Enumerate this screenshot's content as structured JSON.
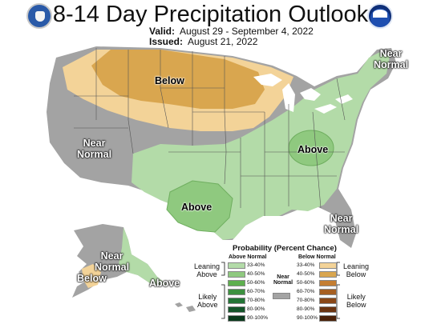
{
  "header": {
    "title": "8-14 Day Precipitation Outlook",
    "valid_label": "Valid:",
    "valid_value": "August 29 - September 4, 2022",
    "issued_label": "Issued:",
    "issued_value": "August 21, 2022"
  },
  "logos": {
    "left": "department-of-commerce-seal",
    "right": "noaa-logo"
  },
  "regions": {
    "north_below": "Below",
    "west_near_normal_1": "Near",
    "west_near_normal_2": "Normal",
    "northeast_near_normal_1": "Near",
    "northeast_near_normal_2": "Normal",
    "ohio_above": "Above",
    "south_above": "Above",
    "southeast_near_normal_1": "Near",
    "southeast_near_normal_2": "Normal",
    "alaska_near_normal_1": "Near",
    "alaska_near_normal_2": "Normal",
    "alaska_below": "Below",
    "alaska_above": "Above"
  },
  "legend": {
    "title": "Probability (Percent Chance)",
    "above_header": "Above Normal",
    "below_header": "Below Normal",
    "near_header_1": "Near",
    "near_header_2": "Normal",
    "leaning_above_1": "Leaning",
    "leaning_above_2": "Above",
    "likely_above_1": "Likely",
    "likely_above_2": "Above",
    "leaning_below_1": "Leaning",
    "leaning_below_2": "Below",
    "likely_below_1": "Likely",
    "likely_below_2": "Below",
    "ranges": [
      "33-40%",
      "40-50%",
      "50-60%",
      "60-70%",
      "70-80%",
      "80-90%",
      "90-100%"
    ],
    "above_colors": [
      "#b3dba8",
      "#8fc97f",
      "#5eaf4e",
      "#3d9140",
      "#237536",
      "#14552a",
      "#0a3a1c"
    ],
    "below_colors": [
      "#f3d398",
      "#d9a64f",
      "#c47e33",
      "#a65f22",
      "#8a4818",
      "#6b3410",
      "#4a2108"
    ],
    "near_color": "#a3a3a3"
  },
  "colors": {
    "near_normal": "#a3a3a3",
    "above_33": "#b3dba8",
    "above_40": "#8fc97f",
    "below_33": "#f3d398",
    "below_40": "#d9a64f",
    "state_lines": "#555555",
    "water": "#ffffff"
  }
}
